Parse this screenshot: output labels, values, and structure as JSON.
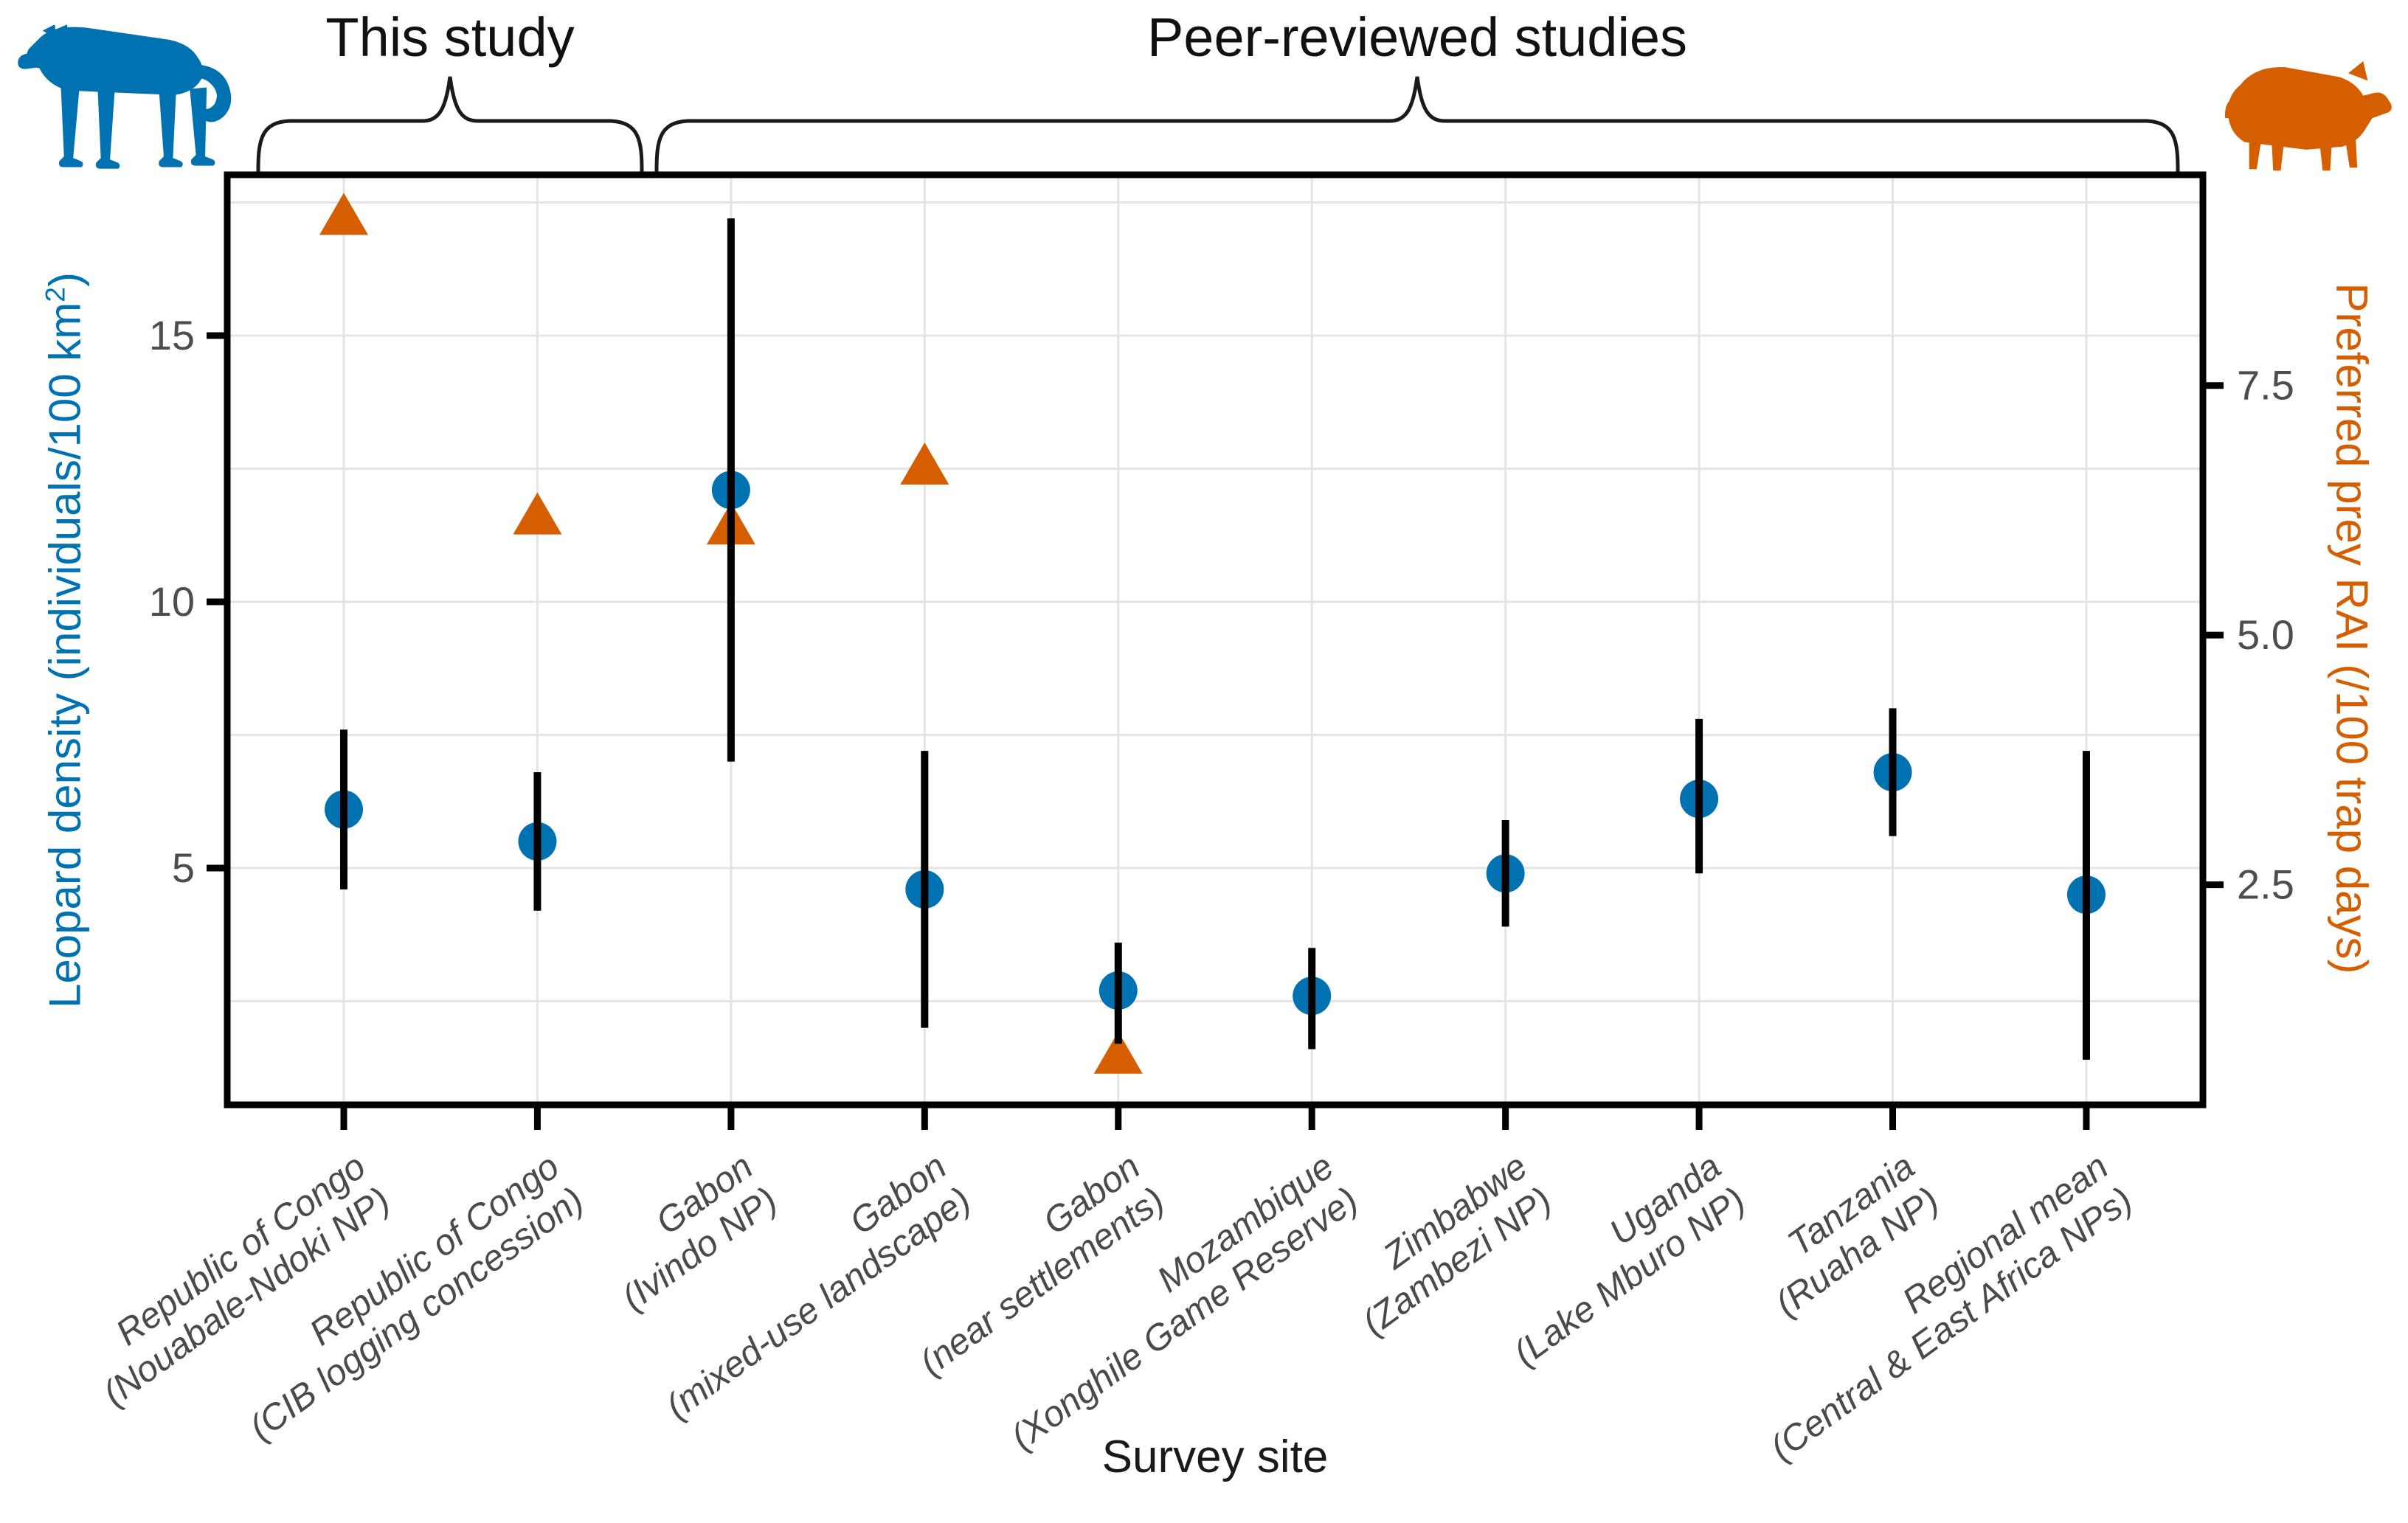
{
  "annotations": {
    "this_study": "This study",
    "peer_reviewed": "Peer-reviewed studies",
    "group_spans": [
      {
        "label": "This study",
        "site_range": [
          1,
          2
        ]
      },
      {
        "label": "Peer-reviewed studies",
        "site_range": [
          3,
          10
        ]
      }
    ]
  },
  "left_axis": {
    "title_prefix": "Leopard density (individuals/100 km",
    "title_sup": "2",
    "title_suffix": ")",
    "color": "#0072B2",
    "ticks": [
      "5",
      "10",
      "15"
    ],
    "tick_values": [
      5,
      10,
      15
    ]
  },
  "right_axis": {
    "title": "Preferred prey RAI (/100 trap days)",
    "color": "#D55E00",
    "ticks": [
      "2.5",
      "5.0",
      "7.5"
    ],
    "tick_values": [
      2.5,
      5.0,
      7.5
    ]
  },
  "x_axis": {
    "title": "Survey site"
  },
  "icons": {
    "left": "leopard-silhouette",
    "right": "wild-pig-silhouette"
  },
  "chart_data": {
    "type": "scatter",
    "title": "",
    "x_categories": [
      [
        "Republic of Congo",
        "(Nouabale-Ndoki NP)"
      ],
      [
        "Republic of Congo",
        "(CIB logging concession)"
      ],
      [
        "Gabon",
        "(Ivindo NP)"
      ],
      [
        "Gabon",
        "(mixed-use landscape)"
      ],
      [
        "Gabon",
        "(near settlements)"
      ],
      [
        "Mozambique",
        "(Xonghile Game Reserve)"
      ],
      [
        "Zimbabwe",
        "(Zambezi NP)"
      ],
      [
        "Uganda",
        "(Lake Mburo NP)"
      ],
      [
        "Tanzania",
        "(Ruaha NP)"
      ],
      [
        "Regional mean",
        "(Central & East Africa NPs)"
      ]
    ],
    "series": [
      {
        "name": "Leopard density (individuals/100 km2)",
        "marker": "circle",
        "color": "#0072B2",
        "axis": "left",
        "values": [
          6.1,
          5.5,
          12.1,
          4.6,
          2.7,
          2.6,
          4.9,
          6.3,
          6.8,
          4.5
        ],
        "ci_low": [
          4.6,
          4.2,
          7.0,
          2.0,
          1.7,
          1.6,
          3.9,
          4.9,
          5.6,
          1.4
        ],
        "ci_high": [
          7.6,
          6.8,
          17.2,
          7.2,
          3.6,
          3.5,
          5.9,
          7.8,
          8.0,
          7.2
        ]
      },
      {
        "name": "Preferred prey RAI (/100 trap days)",
        "marker": "triangle",
        "color": "#D55E00",
        "axis": "right",
        "values": [
          9.2,
          6.2,
          6.1,
          6.7,
          0.8,
          null,
          null,
          null,
          null,
          null
        ]
      }
    ],
    "left_ylim": [
      0.5,
      18.0
    ],
    "right_ylim": [
      0.27,
      9.6
    ],
    "axis_relation": "left_value = right_value * 1.875",
    "gridlines": {
      "horizontal_every_left_units": 2.5,
      "vertical": "at each site"
    },
    "legend_position": "none",
    "error_bars": "95% CI, vertical black lines, no caps"
  }
}
